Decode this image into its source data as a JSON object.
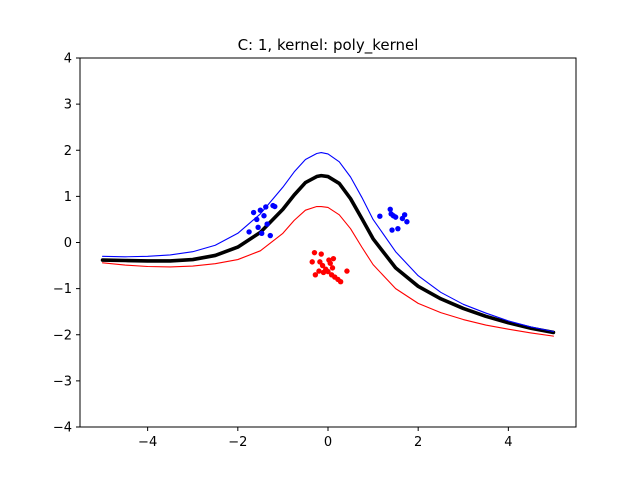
{
  "chart_data": {
    "type": "scatter",
    "title": "C: 1, kernel: poly_kernel",
    "xlabel": "",
    "ylabel": "",
    "xlim": [
      -5.5,
      5.5
    ],
    "ylim": [
      -4,
      4
    ],
    "xticks": [
      -4,
      -2,
      0,
      2,
      4
    ],
    "yticks": [
      -4,
      -3,
      -2,
      -1,
      0,
      1,
      2,
      3,
      4
    ],
    "grid": false,
    "series": [
      {
        "kind": "points",
        "color": "#0000ff",
        "points": [
          [
            -1.75,
            0.23
          ],
          [
            -1.65,
            0.65
          ],
          [
            -1.58,
            0.5
          ],
          [
            -1.55,
            0.33
          ],
          [
            -1.5,
            0.7
          ],
          [
            -1.47,
            0.2
          ],
          [
            -1.42,
            0.58
          ],
          [
            -1.38,
            0.77
          ],
          [
            -1.35,
            0.4
          ],
          [
            -1.28,
            0.15
          ],
          [
            -1.22,
            0.8
          ],
          [
            -1.18,
            0.78
          ],
          [
            1.15,
            0.57
          ],
          [
            1.38,
            0.72
          ],
          [
            1.4,
            0.62
          ],
          [
            1.42,
            0.27
          ],
          [
            1.45,
            0.58
          ],
          [
            1.5,
            0.55
          ],
          [
            1.55,
            0.3
          ],
          [
            1.65,
            0.52
          ],
          [
            1.7,
            0.6
          ],
          [
            1.75,
            0.45
          ]
        ]
      },
      {
        "kind": "points",
        "color": "#ff0000",
        "points": [
          [
            -0.35,
            -0.42
          ],
          [
            -0.3,
            -0.22
          ],
          [
            -0.28,
            -0.7
          ],
          [
            -0.2,
            -0.62
          ],
          [
            -0.18,
            -0.42
          ],
          [
            -0.15,
            -0.25
          ],
          [
            -0.12,
            -0.5
          ],
          [
            -0.1,
            -0.65
          ],
          [
            -0.05,
            -0.58
          ],
          [
            0.0,
            -0.63
          ],
          [
            0.02,
            -0.38
          ],
          [
            0.05,
            -0.45
          ],
          [
            0.08,
            -0.7
          ],
          [
            0.1,
            -0.55
          ],
          [
            0.12,
            -0.35
          ],
          [
            0.15,
            -0.75
          ],
          [
            0.22,
            -0.8
          ],
          [
            0.28,
            -0.85
          ],
          [
            0.42,
            -0.62
          ]
        ]
      },
      {
        "kind": "curve",
        "color": "#000000",
        "width": "heavy",
        "points": [
          [
            -5.0,
            -0.38
          ],
          [
            -4.5,
            -0.39
          ],
          [
            -4.0,
            -0.4
          ],
          [
            -3.5,
            -0.4
          ],
          [
            -3.0,
            -0.37
          ],
          [
            -2.5,
            -0.28
          ],
          [
            -2.0,
            -0.1
          ],
          [
            -1.5,
            0.22
          ],
          [
            -1.0,
            0.72
          ],
          [
            -0.75,
            1.03
          ],
          [
            -0.5,
            1.3
          ],
          [
            -0.25,
            1.43
          ],
          [
            -0.15,
            1.45
          ],
          [
            0.0,
            1.43
          ],
          [
            0.25,
            1.28
          ],
          [
            0.5,
            0.95
          ],
          [
            0.75,
            0.52
          ],
          [
            1.0,
            0.08
          ],
          [
            1.5,
            -0.55
          ],
          [
            2.0,
            -0.95
          ],
          [
            2.5,
            -1.22
          ],
          [
            3.0,
            -1.43
          ],
          [
            3.5,
            -1.6
          ],
          [
            4.0,
            -1.74
          ],
          [
            4.5,
            -1.86
          ],
          [
            5.0,
            -1.95
          ]
        ]
      },
      {
        "kind": "curve",
        "color": "#0000ff",
        "width": "thin",
        "points": [
          [
            -5.0,
            -0.3
          ],
          [
            -4.5,
            -0.31
          ],
          [
            -4.0,
            -0.3
          ],
          [
            -3.5,
            -0.27
          ],
          [
            -3.0,
            -0.2
          ],
          [
            -2.5,
            -0.06
          ],
          [
            -2.0,
            0.2
          ],
          [
            -1.5,
            0.62
          ],
          [
            -1.0,
            1.2
          ],
          [
            -0.75,
            1.53
          ],
          [
            -0.5,
            1.8
          ],
          [
            -0.25,
            1.93
          ],
          [
            -0.15,
            1.95
          ],
          [
            0.0,
            1.92
          ],
          [
            0.25,
            1.75
          ],
          [
            0.5,
            1.42
          ],
          [
            0.75,
            0.98
          ],
          [
            1.0,
            0.5
          ],
          [
            1.5,
            -0.2
          ],
          [
            2.0,
            -0.72
          ],
          [
            2.5,
            -1.08
          ],
          [
            3.0,
            -1.34
          ],
          [
            3.5,
            -1.53
          ],
          [
            4.0,
            -1.7
          ],
          [
            4.5,
            -1.83
          ],
          [
            5.0,
            -1.93
          ]
        ]
      },
      {
        "kind": "curve",
        "color": "#ff0000",
        "width": "thin",
        "points": [
          [
            -5.0,
            -0.44
          ],
          [
            -4.5,
            -0.49
          ],
          [
            -4.0,
            -0.52
          ],
          [
            -3.5,
            -0.53
          ],
          [
            -3.0,
            -0.51
          ],
          [
            -2.5,
            -0.46
          ],
          [
            -2.0,
            -0.37
          ],
          [
            -1.5,
            -0.18
          ],
          [
            -1.0,
            0.2
          ],
          [
            -0.75,
            0.48
          ],
          [
            -0.5,
            0.7
          ],
          [
            -0.25,
            0.78
          ],
          [
            -0.15,
            0.78
          ],
          [
            0.0,
            0.76
          ],
          [
            0.25,
            0.6
          ],
          [
            0.5,
            0.3
          ],
          [
            0.75,
            -0.1
          ],
          [
            1.0,
            -0.48
          ],
          [
            1.5,
            -1.0
          ],
          [
            2.0,
            -1.32
          ],
          [
            2.5,
            -1.52
          ],
          [
            3.0,
            -1.67
          ],
          [
            3.5,
            -1.79
          ],
          [
            4.0,
            -1.88
          ],
          [
            4.5,
            -1.96
          ],
          [
            5.0,
            -2.03
          ]
        ]
      }
    ]
  }
}
